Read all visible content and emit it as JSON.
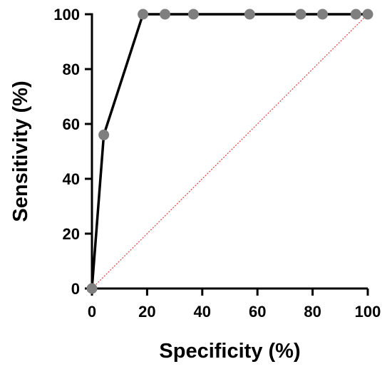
{
  "chart_data": {
    "type": "line",
    "title": "",
    "xlabel": "Specificity (%)",
    "ylabel": "Sensitivity (%)",
    "xlim": [
      0,
      100
    ],
    "ylim": [
      0,
      100
    ],
    "x_ticks": [
      "0",
      "20",
      "40",
      "60",
      "80",
      "100"
    ],
    "y_ticks": [
      "0",
      "20",
      "40",
      "60",
      "80",
      "100"
    ],
    "grid": false,
    "series": [
      {
        "x": [
          0,
          4.3,
          18.5,
          26.5,
          36.8,
          57.2,
          75.7,
          83.6,
          95.7,
          100
        ],
        "y": [
          0,
          56,
          100,
          100,
          100,
          100,
          100,
          100,
          100,
          100
        ],
        "color": "#000000",
        "marker_color": "#7f7f7f"
      }
    ],
    "reference_line": {
      "x": [
        0,
        100
      ],
      "y": [
        0,
        100
      ],
      "style": "dotted",
      "color": "#e04040"
    }
  }
}
